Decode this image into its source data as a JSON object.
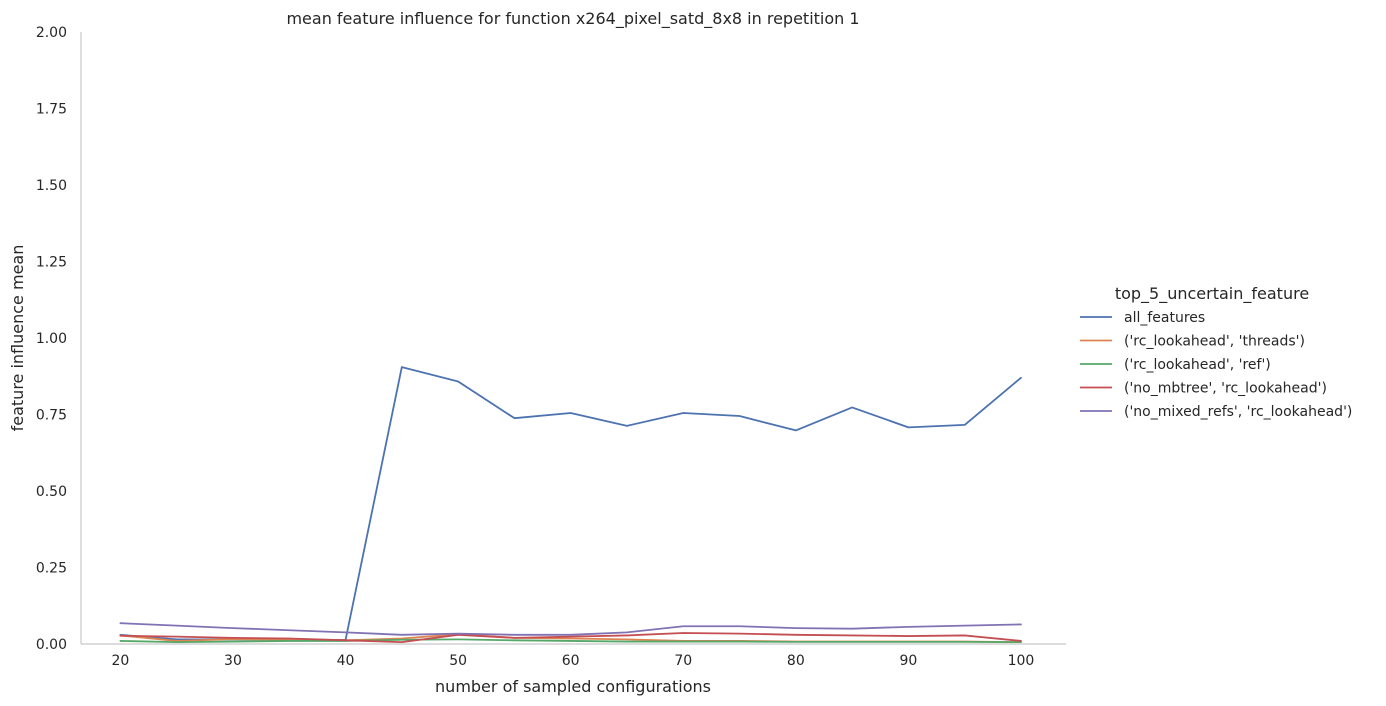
{
  "chart_data": {
    "type": "line",
    "title": "mean feature influence for function x264_pixel_satd_8x8 in repetition 1",
    "xlabel": "number of sampled configurations",
    "ylabel": "feature influence mean",
    "xlim": [
      16.5,
      104
    ],
    "ylim": [
      0,
      2.0
    ],
    "xticks": [
      20,
      30,
      40,
      50,
      60,
      70,
      80,
      90,
      100
    ],
    "yticks": [
      "0.00",
      "0.25",
      "0.50",
      "0.75",
      "1.00",
      "1.25",
      "1.50",
      "1.75",
      "2.00"
    ],
    "grid": false,
    "legend_position": "right",
    "legend_title": "top_5_uncertain_feature",
    "x": [
      20,
      25,
      30,
      35,
      40,
      45,
      50,
      55,
      60,
      65,
      70,
      75,
      80,
      85,
      90,
      95,
      100
    ],
    "series": [
      {
        "name": "all_features",
        "color": "#4c72b0",
        "values": [
          0.03,
          0.015,
          0.015,
          0.015,
          0.013,
          0.905,
          0.858,
          0.738,
          0.755,
          0.713,
          0.755,
          0.745,
          0.698,
          0.773,
          0.708,
          0.716,
          0.87
        ]
      },
      {
        "name": "('rc_lookahead', 'threads')",
        "color": "#dd8452",
        "values": [
          0.028,
          0.01,
          0.016,
          0.014,
          0.012,
          0.018,
          0.032,
          0.02,
          0.018,
          0.015,
          0.01,
          0.01,
          0.008,
          0.008,
          0.008,
          0.008,
          0.006
        ]
      },
      {
        "name": "('rc_lookahead', 'ref')",
        "color": "#55a868",
        "values": [
          0.01,
          0.006,
          0.008,
          0.01,
          0.01,
          0.014,
          0.015,
          0.012,
          0.01,
          0.008,
          0.008,
          0.008,
          0.007,
          0.007,
          0.007,
          0.007,
          0.006
        ]
      },
      {
        "name": "('no_mbtree', 'rc_lookahead')",
        "color": "#c44e52",
        "values": [
          0.027,
          0.024,
          0.02,
          0.018,
          0.012,
          0.006,
          0.03,
          0.02,
          0.024,
          0.028,
          0.036,
          0.034,
          0.03,
          0.028,
          0.026,
          0.028,
          0.01
        ]
      },
      {
        "name": "('no_mixed_refs', 'rc_lookahead')",
        "color": "#8172b3",
        "values": [
          0.068,
          0.06,
          0.052,
          0.045,
          0.038,
          0.03,
          0.034,
          0.03,
          0.03,
          0.038,
          0.058,
          0.058,
          0.052,
          0.05,
          0.056,
          0.06,
          0.064
        ]
      }
    ]
  }
}
